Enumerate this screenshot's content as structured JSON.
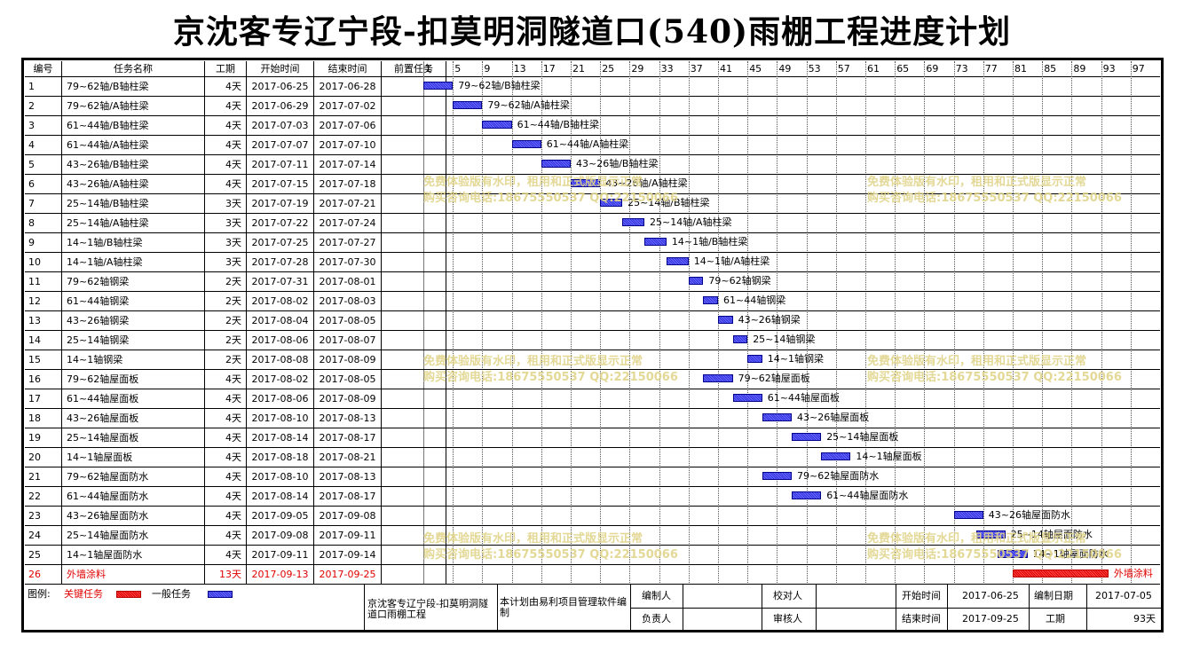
{
  "title": "京沈客专辽宁段-扣莫明洞隧道口(540)雨棚工程进度计划",
  "columns": {
    "id": "编号",
    "name": "任务名称",
    "duration": "工期",
    "start": "开始时间",
    "end": "结束时间",
    "predecessor": "前置任务"
  },
  "scale": [
    "1",
    "5",
    "9",
    "13",
    "17",
    "21",
    "25",
    "29",
    "33",
    "37",
    "41",
    "45",
    "49",
    "53",
    "57",
    "61",
    "65",
    "69",
    "73",
    "77",
    "81",
    "85",
    "89",
    "93",
    "97"
  ],
  "tasks": [
    {
      "id": "1",
      "name": "79~62轴/B轴柱梁",
      "duration": "4天",
      "start": "2017-06-25",
      "end": "2017-06-28",
      "day_start": 1,
      "days": 4,
      "critical": false
    },
    {
      "id": "2",
      "name": "79~62轴/A轴柱梁",
      "duration": "4天",
      "start": "2017-06-29",
      "end": "2017-07-02",
      "day_start": 5,
      "days": 4,
      "critical": false
    },
    {
      "id": "3",
      "name": "61~44轴/B轴柱梁",
      "duration": "4天",
      "start": "2017-07-03",
      "end": "2017-07-06",
      "day_start": 9,
      "days": 4,
      "critical": false
    },
    {
      "id": "4",
      "name": "61~44轴/A轴柱梁",
      "duration": "4天",
      "start": "2017-07-07",
      "end": "2017-07-10",
      "day_start": 13,
      "days": 4,
      "critical": false
    },
    {
      "id": "5",
      "name": "43~26轴/B轴柱梁",
      "duration": "4天",
      "start": "2017-07-11",
      "end": "2017-07-14",
      "day_start": 17,
      "days": 4,
      "critical": false
    },
    {
      "id": "6",
      "name": "43~26轴/A轴柱梁",
      "duration": "4天",
      "start": "2017-07-15",
      "end": "2017-07-18",
      "day_start": 21,
      "days": 4,
      "critical": false
    },
    {
      "id": "7",
      "name": "25~14轴/B轴柱梁",
      "duration": "3天",
      "start": "2017-07-19",
      "end": "2017-07-21",
      "day_start": 25,
      "days": 3,
      "critical": false
    },
    {
      "id": "8",
      "name": "25~14轴/A轴柱梁",
      "duration": "3天",
      "start": "2017-07-22",
      "end": "2017-07-24",
      "day_start": 28,
      "days": 3,
      "critical": false
    },
    {
      "id": "9",
      "name": "14~1轴/B轴柱梁",
      "duration": "3天",
      "start": "2017-07-25",
      "end": "2017-07-27",
      "day_start": 31,
      "days": 3,
      "critical": false
    },
    {
      "id": "10",
      "name": "14~1轴/A轴柱梁",
      "duration": "3天",
      "start": "2017-07-28",
      "end": "2017-07-30",
      "day_start": 34,
      "days": 3,
      "critical": false
    },
    {
      "id": "11",
      "name": "79~62轴钢梁",
      "duration": "2天",
      "start": "2017-07-31",
      "end": "2017-08-01",
      "day_start": 37,
      "days": 2,
      "critical": false
    },
    {
      "id": "12",
      "name": "61~44轴钢梁",
      "duration": "2天",
      "start": "2017-08-02",
      "end": "2017-08-03",
      "day_start": 39,
      "days": 2,
      "critical": false
    },
    {
      "id": "13",
      "name": "43~26轴钢梁",
      "duration": "2天",
      "start": "2017-08-04",
      "end": "2017-08-05",
      "day_start": 41,
      "days": 2,
      "critical": false
    },
    {
      "id": "14",
      "name": "25~14轴钢梁",
      "duration": "2天",
      "start": "2017-08-06",
      "end": "2017-08-07",
      "day_start": 43,
      "days": 2,
      "critical": false
    },
    {
      "id": "15",
      "name": "14~1轴钢梁",
      "duration": "2天",
      "start": "2017-08-08",
      "end": "2017-08-09",
      "day_start": 45,
      "days": 2,
      "critical": false
    },
    {
      "id": "16",
      "name": "79~62轴屋面板",
      "duration": "4天",
      "start": "2017-08-02",
      "end": "2017-08-05",
      "day_start": 39,
      "days": 4,
      "critical": false
    },
    {
      "id": "17",
      "name": "61~44轴屋面板",
      "duration": "4天",
      "start": "2017-08-06",
      "end": "2017-08-09",
      "day_start": 43,
      "days": 4,
      "critical": false
    },
    {
      "id": "18",
      "name": "43~26轴屋面板",
      "duration": "4天",
      "start": "2017-08-10",
      "end": "2017-08-13",
      "day_start": 47,
      "days": 4,
      "critical": false
    },
    {
      "id": "19",
      "name": "25~14轴屋面板",
      "duration": "4天",
      "start": "2017-08-14",
      "end": "2017-08-17",
      "day_start": 51,
      "days": 4,
      "critical": false
    },
    {
      "id": "20",
      "name": "14~1轴屋面板",
      "duration": "4天",
      "start": "2017-08-18",
      "end": "2017-08-21",
      "day_start": 55,
      "days": 4,
      "critical": false
    },
    {
      "id": "21",
      "name": "79~62轴屋面防水",
      "duration": "4天",
      "start": "2017-08-10",
      "end": "2017-08-13",
      "day_start": 47,
      "days": 4,
      "critical": false
    },
    {
      "id": "22",
      "name": "61~44轴屋面防水",
      "duration": "4天",
      "start": "2017-08-14",
      "end": "2017-08-17",
      "day_start": 51,
      "days": 4,
      "critical": false
    },
    {
      "id": "23",
      "name": "43~26轴屋面防水",
      "duration": "4天",
      "start": "2017-09-05",
      "end": "2017-09-08",
      "day_start": 73,
      "days": 4,
      "critical": false
    },
    {
      "id": "24",
      "name": "25~14轴屋面防水",
      "duration": "4天",
      "start": "2017-09-08",
      "end": "2017-09-11",
      "day_start": 76,
      "days": 4,
      "critical": false
    },
    {
      "id": "25",
      "name": "14~1轴屋面防水",
      "duration": "4天",
      "start": "2017-09-11",
      "end": "2017-09-14",
      "day_start": 79,
      "days": 4,
      "critical": false
    },
    {
      "id": "26",
      "name": "外墙涂料",
      "duration": "13天",
      "start": "2017-09-13",
      "end": "2017-09-25",
      "day_start": 81,
      "days": 13,
      "critical": true
    }
  ],
  "watermark": {
    "line1": "免费体验版有水印，租用和正式版显示正常",
    "line2": "购买咨询电话:18675550537 QQ:22150066"
  },
  "legend": {
    "label": "图例:",
    "critical": "关键任务",
    "normal": "一般任务",
    "critical_color": "#e00000",
    "normal_color": "#3333dd"
  },
  "footer": {
    "project_name": "京沈客专辽宁段-扣莫明洞隧道口雨棚工程",
    "software_note": "本计划由易利项目管理软件编制",
    "author_label": "编制人",
    "author_value": "",
    "reviewer_label": "校对人",
    "reviewer_value": "",
    "owner_label": "负责人",
    "owner_value": "",
    "auditor_label": "审核人",
    "auditor_value": "",
    "start_label": "开始时间",
    "start_value": "2017-06-25",
    "end_label": "结束时间",
    "end_value": "2017-09-25",
    "date_label": "编制日期",
    "date_value": "2017-07-05",
    "duration_label": "工期",
    "duration_value": "93天"
  }
}
